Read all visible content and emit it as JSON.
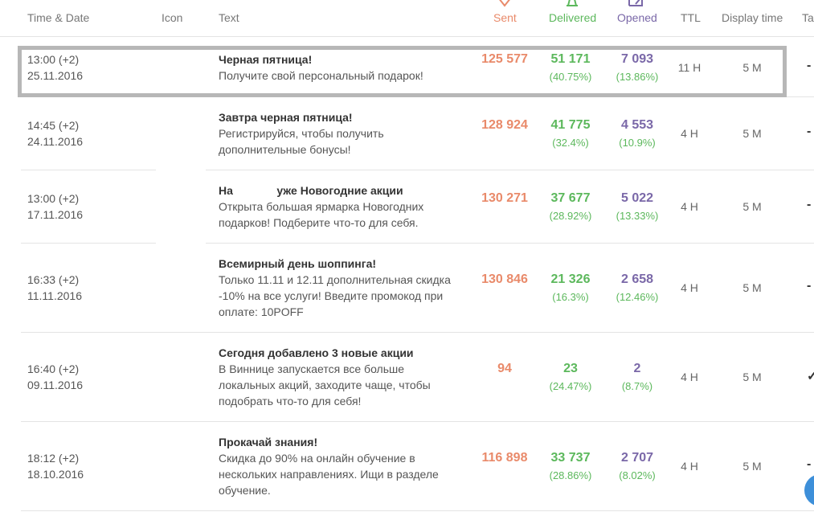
{
  "headers": {
    "time_date": "Time & Date",
    "icon": "Icon",
    "text": "Text",
    "sent": "Sent",
    "delivered": "Delivered",
    "opened": "Opened",
    "ttl": "TTL",
    "display_time": "Display time",
    "tail": "Ta"
  },
  "icons": {
    "sent": "send-icon",
    "delivered": "bell-icon",
    "opened": "open-external-icon"
  },
  "colors": {
    "sent": "#e98a6a",
    "delivered": "#5cb85c",
    "opened": "#7a68a8",
    "highlight": "#b7b7b7"
  },
  "rows": [
    {
      "time": "13:00 (+2)",
      "date": "25.11.2016",
      "title": "Черная пятница!",
      "body": "Получите свой персональный подарок!",
      "sent": "125 577",
      "delivered": "51 171",
      "delivered_pct": "(40.75%)",
      "opened": "7 093",
      "opened_pct": "(13.86%)",
      "ttl": "11 H",
      "display": "5 M",
      "tail": "-"
    },
    {
      "time": "14:45 (+2)",
      "date": "24.11.2016",
      "title": "Завтра черная пятница!",
      "body": "Регистрируйся, чтобы получить дополнительные бонусы!",
      "sent": "128 924",
      "delivered": "41 775",
      "delivered_pct": "(32.4%)",
      "opened": "4 553",
      "opened_pct": "(10.9%)",
      "ttl": "4 H",
      "display": "5 M",
      "tail": "-"
    },
    {
      "time": "13:00 (+2)",
      "date": "17.11.2016",
      "title": "На              уже Новогодние акции",
      "body": "Открыта большая ярмарка Новогодних подарков! Подберите что-то для себя.",
      "sent": "130 271",
      "delivered": "37 677",
      "delivered_pct": "(28.92%)",
      "opened": "5 022",
      "opened_pct": "(13.33%)",
      "ttl": "4 H",
      "display": "5 M",
      "tail": "-"
    },
    {
      "time": "16:33 (+2)",
      "date": "11.11.2016",
      "title": "Всемирный день шоппинга!",
      "body": "Только 11.11 и 12.11 дополнительная скидка -10% на все услуги! Введите промокод при оплате: 10POFF",
      "sent": "130 846",
      "delivered": "21 326",
      "delivered_pct": "(16.3%)",
      "opened": "2 658",
      "opened_pct": "(12.46%)",
      "ttl": "4 H",
      "display": "5 M",
      "tail": "-"
    },
    {
      "time": "16:40 (+2)",
      "date": "09.11.2016",
      "title": "Сегодня добавлено 3 новые акции",
      "body": "В Виннице запускается все больше локальных акций, заходите чаще, чтобы подобрать что-то для себя!",
      "sent": "94",
      "delivered": "23",
      "delivered_pct": "(24.47%)",
      "opened": "2",
      "opened_pct": "(8.7%)",
      "ttl": "4 H",
      "display": "5 M",
      "tail": "✓"
    },
    {
      "time": "18:12 (+2)",
      "date": "18.10.2016",
      "title": "Прокачай знания!",
      "body": "Скидка до 90% на онлайн обучение в нескольких направлениях. Ищи в разделе обучение.",
      "sent": "116 898",
      "delivered": "33 737",
      "delivered_pct": "(28.86%)",
      "opened": "2 707",
      "opened_pct": "(8.02%)",
      "ttl": "4 H",
      "display": "5 M",
      "tail": "-"
    }
  ]
}
